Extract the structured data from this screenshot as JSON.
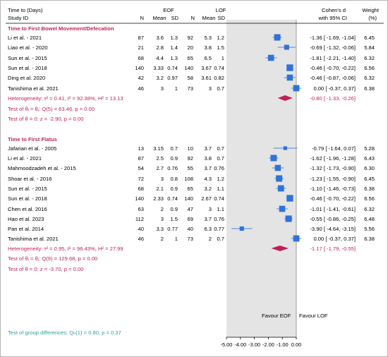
{
  "header": {
    "col_label_line1": "Time to (Days)",
    "col_label_line2": "Study ID",
    "eof": "EOF",
    "lof": "LOF",
    "n": "N",
    "mean": "Mean",
    "sd": "SD",
    "cohens_line1": "Cohen's d",
    "cohens_line2": "with 95% CI",
    "weight_line1": "Weight",
    "weight_line2": "(%)"
  },
  "footer": {
    "favour_left": "Favour EOF",
    "favour_right": "Favour LOF",
    "group_diff": "Test of group differences: Qₕ(1) = 0.80, p = 0.37"
  },
  "colors": {
    "subgroup_text": "#c0245c",
    "square": "#2f73d9",
    "ci_line": "#4a86d8",
    "diamond": "#c21f52",
    "shade": "#e4e4e4",
    "footer_text": "#2aa3a0"
  },
  "chart_data": {
    "type": "forest",
    "xlim": [
      -5.0,
      0.0
    ],
    "xticks": [
      -5.0,
      -4.0,
      -3.0,
      -2.0,
      -1.0,
      0.0
    ],
    "xtick_labels": [
      "-5.00",
      "-4.00",
      "-3.00",
      "-2.00",
      "-1.00",
      "0.00"
    ],
    "groups": [
      {
        "title": "Time to First Bowel Movement/Defecation",
        "studies": [
          {
            "name": "Li et al. - 2021",
            "n1": "87",
            "m1": "3.6",
            "sd1": "1.3",
            "n2": "92",
            "m2": "5.3",
            "sd2": "1.2",
            "d": -1.36,
            "lo": -1.69,
            "hi": -1.04,
            "ci": "-1.36 [ -1.69, -1.04]",
            "weight": "6.45"
          },
          {
            "name": "Liao et al. - 2020",
            "n1": "21",
            "m1": "2.8",
            "sd1": "1.4",
            "n2": "20",
            "m2": "3.8",
            "sd2": "1.5",
            "d": -0.69,
            "lo": -1.32,
            "hi": -0.06,
            "ci": "-0.69 [ -1.32, -0.06]",
            "weight": "5.84"
          },
          {
            "name": "Sun et al. - 2015",
            "n1": "68",
            "m1": "4.4",
            "sd1": "1.3",
            "n2": "65",
            "m2": "6.5",
            "sd2": "1",
            "d": -1.81,
            "lo": -2.21,
            "hi": -1.4,
            "ci": "-1.81 [ -2.21, -1.40]",
            "weight": "6.32"
          },
          {
            "name": "Sun et al. - 2018",
            "n1": "140",
            "m1": "3.33",
            "sd1": "0.74",
            "n2": "140",
            "m2": "3.67",
            "sd2": "0.74",
            "d": -0.46,
            "lo": -0.7,
            "hi": -0.22,
            "ci": "-0.46 [ -0.70, -0.22]",
            "weight": "6.56"
          },
          {
            "name": "Ding et al. 2020",
            "n1": "42",
            "m1": "3.2",
            "sd1": "0.97",
            "n2": "58",
            "m2": "3.61",
            "sd2": "0.82",
            "d": -0.46,
            "lo": -0.87,
            "hi": -0.06,
            "ci": "-0.46 [ -0.87, -0.06]",
            "weight": "6.32"
          },
          {
            "name": "Tanishima et al. 2021",
            "n1": "46",
            "m1": "3",
            "sd1": "1",
            "n2": "73",
            "m2": "3",
            "sd2": "0.7",
            "d": 0.0,
            "lo": -0.37,
            "hi": 0.37,
            "ci": "0.00 [ -0.37, 0.37]",
            "weight": "6.38"
          }
        ],
        "pooled": {
          "d": -0.8,
          "lo": -1.33,
          "hi": -0.26,
          "ci": "-0.80 [ -1.33, -0.26]"
        },
        "heterogeneity": "Heterogeneity: τ² = 0.41, I² = 92.38%, H² = 13.13",
        "test_theta_i": "Test of θᵢ = θⱼ: Q(5) = 63.46, p = 0.00",
        "test_theta_0": "Test of θ = 0: z = -2.90, p = 0.00"
      },
      {
        "title": "Time to First Flatus",
        "studies": [
          {
            "name": "Jafarian et al. - 2005",
            "n1": "13",
            "m1": "3.15",
            "sd1": "0.7",
            "n2": "10",
            "m2": "3.7",
            "sd2": "0.7",
            "d": -0.79,
            "lo": -1.64,
            "hi": 0.07,
            "ci": "-0.79 [ -1.64, 0.07]",
            "weight": "5.28"
          },
          {
            "name": "Li et al. - 2021",
            "n1": "87",
            "m1": "2.5",
            "sd1": "0.9",
            "n2": "92",
            "m2": "3.8",
            "sd2": "0.7",
            "d": -1.62,
            "lo": -1.96,
            "hi": -1.28,
            "ci": "-1.62 [ -1.96, -1.28]",
            "weight": "6.43"
          },
          {
            "name": "Mahmoodzadeh et al. - 2015",
            "n1": "54",
            "m1": "2.7",
            "sd1": "0.76",
            "n2": "55",
            "m2": "3.7",
            "sd2": "0.76",
            "d": -1.32,
            "lo": -1.73,
            "hi": -0.9,
            "ci": "-1.32 [ -1.73, -0.90]",
            "weight": "6.30"
          },
          {
            "name": "Shoar et al. - 2016",
            "n1": "72",
            "m1": "3",
            "sd1": "0.8",
            "n2": "108",
            "m2": "4.3",
            "sd2": "1.2",
            "d": -1.23,
            "lo": -1.55,
            "hi": -0.9,
            "ci": "-1.23 [ -1.55, -0.90]",
            "weight": "6.45"
          },
          {
            "name": "Sun et al. - 2015",
            "n1": "68",
            "m1": "2.1",
            "sd1": "0.9",
            "n2": "65",
            "m2": "3.2",
            "sd2": "1.1",
            "d": -1.1,
            "lo": -1.46,
            "hi": -0.73,
            "ci": "-1.10 [ -1.46, -0.73]",
            "weight": "6.38"
          },
          {
            "name": "Sun et al. - 2018",
            "n1": "140",
            "m1": "2.33",
            "sd1": "0.74",
            "n2": "140",
            "m2": "2.67",
            "sd2": "0.74",
            "d": -0.46,
            "lo": -0.7,
            "hi": -0.22,
            "ci": "-0.46 [ -0.70, -0.22]",
            "weight": "6.56"
          },
          {
            "name": "Chen et al. 2016",
            "n1": "63",
            "m1": "2",
            "sd1": "0.9",
            "n2": "47",
            "m2": "3",
            "sd2": "1.1",
            "d": -1.01,
            "lo": -1.41,
            "hi": -0.61,
            "ci": "-1.01 [ -1.41, -0.61]",
            "weight": "6.32"
          },
          {
            "name": "Hao et al. 2023",
            "n1": "112",
            "m1": "3",
            "sd1": "1.5",
            "n2": "69",
            "m2": "3.7",
            "sd2": "0.76",
            "d": -0.55,
            "lo": -0.86,
            "hi": -0.25,
            "ci": "-0.55 [ -0.86, -0.25]",
            "weight": "6.48"
          },
          {
            "name": "Pan et al. 2014",
            "n1": "40",
            "m1": "3.3",
            "sd1": "0.77",
            "n2": "40",
            "m2": "6.3",
            "sd2": "0.77",
            "d": -3.9,
            "lo": -4.64,
            "hi": -3.15,
            "ci": "-3.90 [ -4.64, -3.15]",
            "weight": "5.56"
          },
          {
            "name": "Tanishima et al. 2021",
            "n1": "46",
            "m1": "2",
            "sd1": "1",
            "n2": "73",
            "m2": "2",
            "sd2": "0.7",
            "d": 0.0,
            "lo": -0.37,
            "hi": 0.37,
            "ci": "0.00 [ -0.37, 0.37]",
            "weight": "6.38"
          }
        ],
        "pooled": {
          "d": -1.17,
          "lo": -1.79,
          "hi": -0.55,
          "ci": "-1.17 [ -1.79, -0.55]"
        },
        "heterogeneity": "Heterogeneity: τ² = 0.95, I² = 96.43%, H² = 27.99",
        "test_theta_i": "Test of θᵢ = θⱼ: Q(9) = 129.68, p = 0.00",
        "test_theta_0": "Test of θ = 0: z = -3.70, p = 0.00"
      }
    ]
  }
}
